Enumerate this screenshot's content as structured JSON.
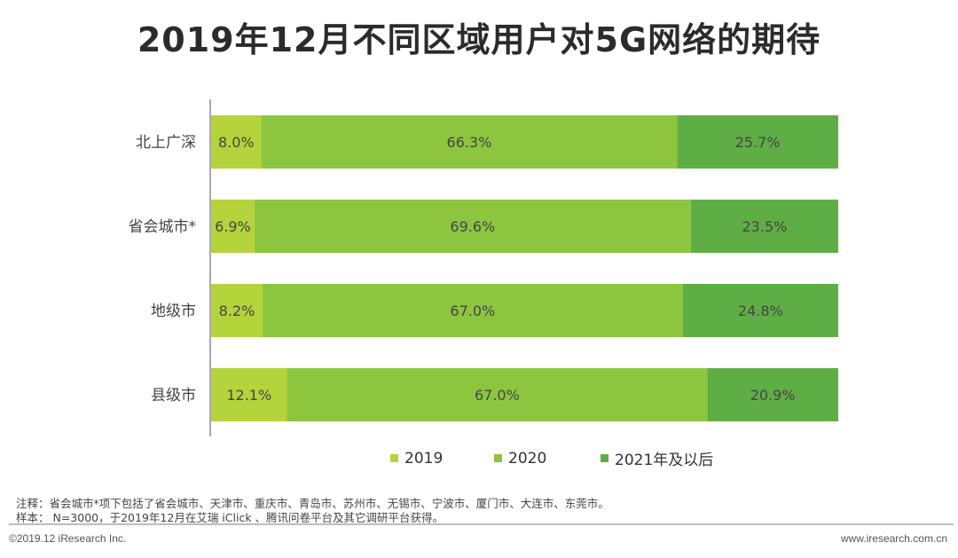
{
  "title": "2019年12月不同区域用户对5G网络的期待",
  "chart_data": {
    "type": "bar",
    "orientation": "horizontal",
    "stacked": true,
    "normalized": true,
    "title": "2019年12月不同区域用户对5G网络的期待",
    "categories": [
      "北上广深",
      "省会城市*",
      "地级市",
      "县级市"
    ],
    "series": [
      {
        "name": "2019",
        "values": [
          8.0,
          6.9,
          8.2,
          12.1
        ],
        "labels": [
          "8.0%",
          "6.9%",
          "8.2%",
          "12.1%"
        ]
      },
      {
        "name": "2020",
        "values": [
          66.3,
          69.6,
          67.0,
          67.0
        ],
        "labels": [
          "66.3%",
          "69.6%",
          "67.0%",
          "67.0%"
        ]
      },
      {
        "name": "2021年及以后",
        "values": [
          25.7,
          23.5,
          24.8,
          20.9
        ],
        "labels": [
          "25.7%",
          "23.5%",
          "24.8%",
          "20.9%"
        ]
      }
    ],
    "colors": [
      "#b5d33a",
      "#8cc63f",
      "#5fae45"
    ],
    "xlim": [
      0,
      100
    ],
    "legend": "bottom"
  },
  "notes": {
    "note1": "注释：省会城市*项下包括了省会城市、天津市、重庆市、青岛市、苏州市、无锡市、宁波市、厦门市、大连市、东莞市。",
    "note2": "样本： N=3000，于2019年12月在艾瑞 iClick 、腾讯问卷平台及其它调研平台获得。"
  },
  "footer": {
    "copyright": "©2019.12 iResearch Inc.",
    "website": "www.iresearch.com.cn"
  }
}
